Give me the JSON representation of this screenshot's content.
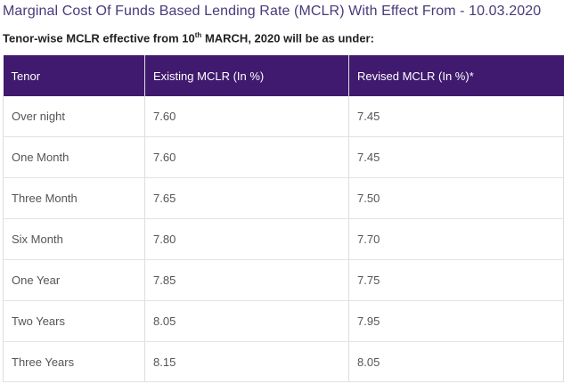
{
  "page": {
    "title": "Marginal Cost Of Funds Based Lending Rate (MCLR) With Effect From - 10.03.2020",
    "subtitle_before": "Tenor-wise MCLR effective from 10",
    "subtitle_sup": "th",
    "subtitle_after": " MARCH, 2020 will be as under:"
  },
  "table": {
    "headers": {
      "tenor": "Tenor",
      "existing": "Existing MCLR (In %)",
      "revised": "Revised MCLR (In %)*"
    },
    "rows": [
      {
        "tenor": "Over night",
        "existing": "7.60",
        "revised": "7.45"
      },
      {
        "tenor": "One Month",
        "existing": "7.60",
        "revised": "7.45"
      },
      {
        "tenor": "Three Month",
        "existing": "7.65",
        "revised": "7.50"
      },
      {
        "tenor": "Six Month",
        "existing": "7.80",
        "revised": "7.70"
      },
      {
        "tenor": "One Year",
        "existing": "7.85",
        "revised": "7.75"
      },
      {
        "tenor": "Two Years",
        "existing": "8.05",
        "revised": "7.95"
      },
      {
        "tenor": "Three Years",
        "existing": "8.15",
        "revised": "8.05"
      }
    ]
  },
  "colors": {
    "header_bg": "#3f1a6e",
    "title_color": "#4a3a7a"
  }
}
